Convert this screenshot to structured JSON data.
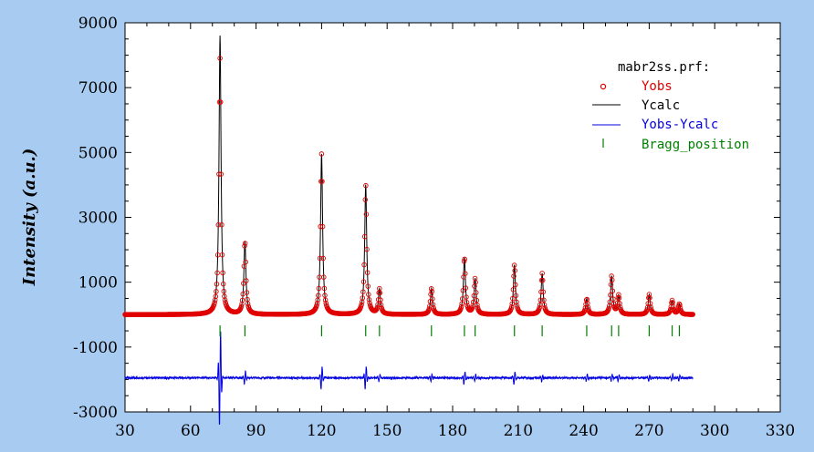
{
  "chart_data": {
    "type": "line",
    "legend_title": "mabr2ss.prf:",
    "ylabel": "Intensity (a.u.)",
    "xlabel": "",
    "xlim": [
      30,
      330
    ],
    "ylim": [
      -3000,
      9000
    ],
    "x_ticks": [
      30,
      60,
      90,
      120,
      150,
      180,
      210,
      240,
      270,
      300,
      330
    ],
    "y_ticks": [
      9000,
      7000,
      5000,
      3000,
      1000,
      -1000,
      -3000
    ],
    "legend_position": "top-right",
    "grid": false,
    "background_color": "#a7cbf1",
    "plot_background": "#ffffff",
    "x_range": [
      30,
      290
    ],
    "baseline": 0,
    "series": [
      {
        "name": "Yobs",
        "color": "#e00000",
        "marker": "open-circle"
      },
      {
        "name": "Ycalc",
        "color": "#000000",
        "line": "solid"
      },
      {
        "name": "Yobs-Ycalc",
        "color": "#0000e0",
        "line": "solid",
        "offset": -1950
      },
      {
        "name": "Bragg_position",
        "color": "#008000",
        "marker": "vertical-tick",
        "y": -500
      }
    ],
    "peaks": [
      {
        "x": 73.5,
        "height": 7900,
        "calc_height": 8600
      },
      {
        "x": 84.9,
        "height": 2250
      },
      {
        "x": 120.0,
        "height": 4950
      },
      {
        "x": 140.2,
        "height": 4000
      },
      {
        "x": 146.5,
        "height": 770
      },
      {
        "x": 170.3,
        "height": 800
      },
      {
        "x": 185.4,
        "height": 1750
      },
      {
        "x": 190.3,
        "height": 1100
      },
      {
        "x": 208.3,
        "height": 1530
      },
      {
        "x": 221.0,
        "height": 1270
      },
      {
        "x": 241.4,
        "height": 480
      },
      {
        "x": 252.8,
        "height": 1180
      },
      {
        "x": 256.0,
        "height": 580
      },
      {
        "x": 270.0,
        "height": 620
      },
      {
        "x": 280.5,
        "height": 430
      },
      {
        "x": 283.8,
        "height": 320
      }
    ],
    "bragg_positions": [
      73.5,
      84.9,
      120.0,
      140.2,
      146.5,
      170.3,
      185.4,
      190.3,
      208.3,
      221.0,
      241.4,
      252.8,
      256.0,
      270.0,
      280.5,
      283.8
    ]
  }
}
